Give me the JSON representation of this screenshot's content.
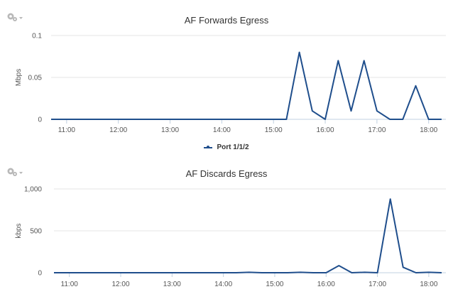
{
  "colors": {
    "series": "#1f4e8c",
    "grid": "#e6e6e6",
    "axis": "#c0d0e0"
  },
  "icons": {
    "settings": "gear-icon"
  },
  "legend": {
    "series_label": "Port 1/1/2"
  },
  "chart_data": [
    {
      "type": "line",
      "title": "AF Forwards Egress",
      "xlabel": "",
      "ylabel": "Mbps",
      "ylim": [
        0,
        0.1
      ],
      "y_ticks": [
        "0",
        "0.05",
        "0.1"
      ],
      "y_tick_values": [
        0,
        0.05,
        0.1
      ],
      "xlim": [
        "10:42",
        "18:20"
      ],
      "x_ticks": [
        "11:00",
        "12:00",
        "13:00",
        "14:00",
        "15:00",
        "16:00",
        "17:00",
        "18:00"
      ],
      "grid": true,
      "series": [
        {
          "name": "Port 1/1/2",
          "x": [
            "10:42",
            "11:00",
            "11:15",
            "11:30",
            "11:45",
            "12:00",
            "12:15",
            "12:30",
            "12:45",
            "13:00",
            "13:15",
            "13:30",
            "13:45",
            "14:00",
            "14:15",
            "14:30",
            "14:45",
            "15:00",
            "15:15",
            "15:30",
            "15:45",
            "16:00",
            "16:15",
            "16:30",
            "16:45",
            "17:00",
            "17:15",
            "17:30",
            "17:45",
            "18:00",
            "18:15"
          ],
          "values": [
            0,
            0,
            0,
            0,
            0,
            0,
            0,
            0,
            0,
            0,
            0,
            0,
            0,
            0,
            0,
            0,
            0,
            0,
            0,
            0.08,
            0.01,
            0,
            0.07,
            0.01,
            0.07,
            0.01,
            0,
            0,
            0.04,
            0,
            0
          ]
        }
      ]
    },
    {
      "type": "line",
      "title": "AF Discards Egress",
      "xlabel": "",
      "ylabel": "kbps",
      "ylim": [
        0,
        1000
      ],
      "y_ticks": [
        "0",
        "500",
        "1,000"
      ],
      "y_tick_values": [
        0,
        500,
        1000
      ],
      "xlim": [
        "10:42",
        "18:20"
      ],
      "x_ticks": [
        "11:00",
        "12:00",
        "13:00",
        "14:00",
        "15:00",
        "16:00",
        "17:00",
        "18:00"
      ],
      "grid": true,
      "series": [
        {
          "name": "Port 1/1/2",
          "x": [
            "10:42",
            "11:00",
            "11:15",
            "11:30",
            "11:45",
            "12:00",
            "12:15",
            "12:30",
            "12:45",
            "13:00",
            "13:15",
            "13:30",
            "13:45",
            "14:00",
            "14:15",
            "14:30",
            "14:45",
            "15:00",
            "15:15",
            "15:30",
            "15:45",
            "16:00",
            "16:15",
            "16:30",
            "16:45",
            "17:00",
            "17:15",
            "17:30",
            "17:45",
            "18:00",
            "18:15"
          ],
          "values": [
            0,
            0,
            0,
            0,
            0,
            0,
            0,
            0,
            0,
            0,
            0,
            0,
            0,
            0,
            0,
            5,
            0,
            0,
            0,
            5,
            0,
            0,
            85,
            0,
            5,
            0,
            880,
            65,
            0,
            5,
            0
          ]
        }
      ]
    }
  ]
}
